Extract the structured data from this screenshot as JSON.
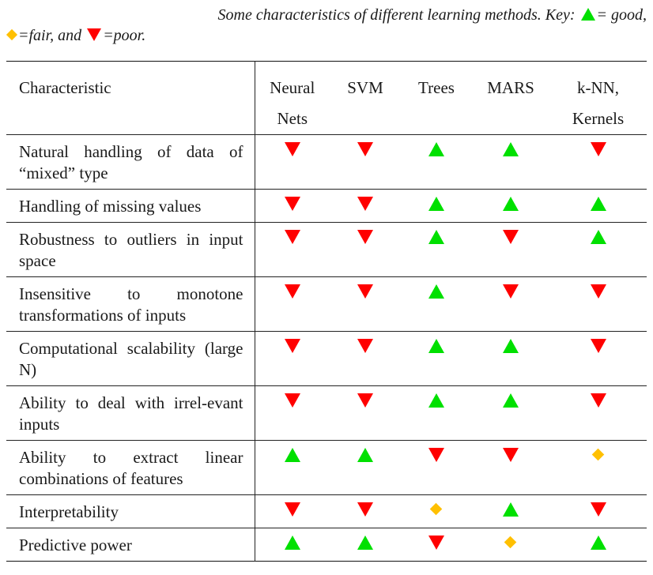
{
  "caption": {
    "line1_prefix": "Some characteristics of different learning methods. Key: ",
    "good_suffix": "= good,",
    "fair_suffix": "=fair, and ",
    "poor_suffix": "=poor."
  },
  "legend_colors": {
    "good": "#00e000",
    "fair": "#ffc000",
    "poor": "#ff0000"
  },
  "header": {
    "characteristic": "Characteristic",
    "methods": [
      {
        "line1": "Neural",
        "line2": "Nets"
      },
      {
        "line1": "SVM",
        "line2": ""
      },
      {
        "line1": "Trees",
        "line2": ""
      },
      {
        "line1": "MARS",
        "line2": ""
      },
      {
        "line1": "k-NN,",
        "line2": "Kernels"
      }
    ]
  },
  "rows": [
    {
      "label": "Natural handling of data of “mixed” type",
      "ratings": [
        "poor",
        "poor",
        "good",
        "good",
        "poor"
      ]
    },
    {
      "label": "Handling of missing values",
      "ratings": [
        "poor",
        "poor",
        "good",
        "good",
        "good"
      ]
    },
    {
      "label": "Robustness to outliers in input space",
      "ratings": [
        "poor",
        "poor",
        "good",
        "poor",
        "good"
      ]
    },
    {
      "label": "Insensitive to monotone transformations of inputs",
      "ratings": [
        "poor",
        "poor",
        "good",
        "poor",
        "poor"
      ]
    },
    {
      "label": "Computational scalability (large N)",
      "ratings": [
        "poor",
        "poor",
        "good",
        "good",
        "poor"
      ]
    },
    {
      "label": "Ability to deal with irrel-evant inputs",
      "ratings": [
        "poor",
        "poor",
        "good",
        "good",
        "poor"
      ]
    },
    {
      "label": "Ability to extract linear combinations of features",
      "ratings": [
        "good",
        "good",
        "poor",
        "poor",
        "fair"
      ]
    },
    {
      "label": "Interpretability",
      "ratings": [
        "poor",
        "poor",
        "fair",
        "good",
        "poor"
      ]
    },
    {
      "label": "Predictive power",
      "ratings": [
        "good",
        "good",
        "poor",
        "fair",
        "good"
      ]
    }
  ]
}
